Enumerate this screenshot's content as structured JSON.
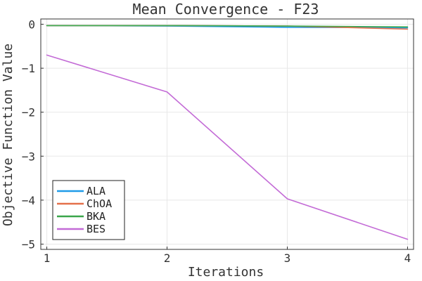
{
  "chart_data": {
    "type": "line",
    "title": "Mean Convergence - F23",
    "xlabel": "Iterations",
    "ylabel": "Objective Function Value",
    "x": [
      1,
      2,
      3,
      4
    ],
    "xlim": [
      0.95,
      4.05
    ],
    "ylim": [
      -5.12,
      0.12
    ],
    "xticks": [
      1,
      2,
      3,
      4
    ],
    "xtick_labels": [
      "1",
      "2",
      "3",
      "4"
    ],
    "yticks": [
      0,
      -1,
      -2,
      -3,
      -4,
      -5
    ],
    "ytick_labels": [
      "0",
      "−1",
      "−2",
      "−3",
      "−4",
      "−5"
    ],
    "grid": true,
    "legend_position": "bottom-left",
    "series": [
      {
        "name": "ALA",
        "color": "#1f9be8",
        "values": [
          -0.03,
          -0.04,
          -0.07,
          -0.08
        ]
      },
      {
        "name": "ChOA",
        "color": "#e4704a",
        "values": [
          -0.03,
          -0.03,
          -0.04,
          -0.11
        ]
      },
      {
        "name": "BKA",
        "color": "#3aa64a",
        "values": [
          -0.03,
          -0.03,
          -0.04,
          -0.06
        ]
      },
      {
        "name": "BES",
        "color": "#c36bd6",
        "values": [
          -0.7,
          -1.54,
          -3.97,
          -4.89
        ]
      }
    ]
  }
}
